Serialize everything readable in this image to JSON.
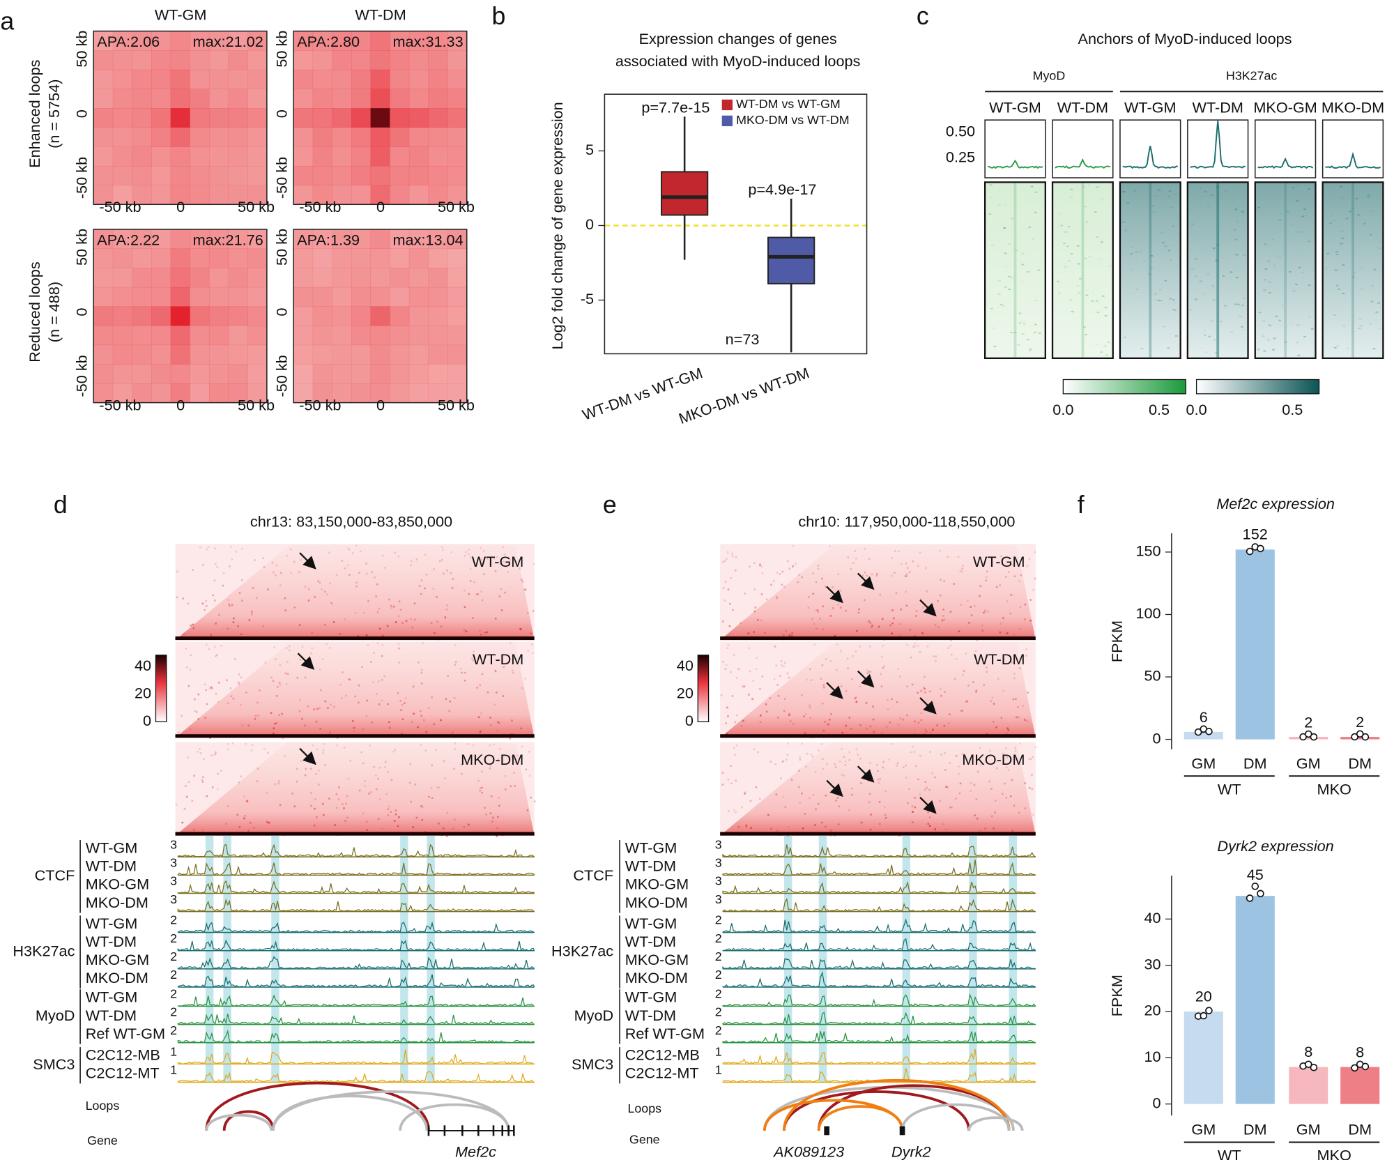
{
  "panel_labels": [
    "a",
    "b",
    "c",
    "d",
    "e",
    "f"
  ],
  "apa": {
    "columns": [
      "WT-GM",
      "WT-DM"
    ],
    "rows": [
      {
        "label": "Enhanced loops",
        "n": "(n = 5754)"
      },
      {
        "label": "Reduced loops",
        "n": "(n = 488)"
      }
    ],
    "stats": [
      [
        "APA:2.06",
        "max:21.02"
      ],
      [
        "APA:2.80",
        "max:31.33"
      ],
      [
        "APA:2.22",
        "max:21.76"
      ],
      [
        "APA:1.39",
        "max:13.04"
      ]
    ],
    "x_ticks": [
      "-50 kb",
      "0",
      "50 kb"
    ],
    "y_ticks": [
      "50 kb",
      "0",
      "-50 kb"
    ]
  },
  "anchors": {
    "title": "Anchors of MyoD-induced loops",
    "groups": [
      {
        "name": "MyoD",
        "columns": [
          "WT-GM",
          "WT-DM"
        ]
      },
      {
        "name": "H3K27ac",
        "columns": [
          "WT-GM",
          "WT-DM",
          "MKO-GM",
          "MKO-DM"
        ]
      }
    ],
    "profile_ticks": [
      "0.50",
      "0.25"
    ],
    "colorbars": [
      [
        "0.0",
        "0.5"
      ],
      [
        "0.0",
        "0.5"
      ]
    ]
  },
  "loci": [
    {
      "title": "chr13: 83,150,000-83,850,000",
      "maps": [
        "WT-GM",
        "WT-DM",
        "MKO-DM"
      ],
      "colorbar": [
        "40",
        "20",
        "0"
      ],
      "tracks": [
        {
          "name": "CTCF",
          "scale": "3",
          "color": "#7b7020",
          "samples": [
            "WT-GM",
            "WT-DM",
            "MKO-GM",
            "MKO-DM"
          ]
        },
        {
          "name": "H3K27ac",
          "scale": "2",
          "color": "#1b6f70",
          "samples": [
            "WT-GM",
            "WT-DM",
            "MKO-GM",
            "MKO-DM"
          ]
        },
        {
          "name": "MyoD",
          "scale": "2",
          "color": "#2a9440",
          "samples": [
            "WT-GM",
            "WT-DM",
            "Ref WT-GM"
          ]
        },
        {
          "name": "SMC3",
          "scale": "1",
          "color": "#e0aa1c",
          "samples": [
            "C2C12-MB",
            "C2C12-MT"
          ]
        }
      ],
      "loops": "Loops",
      "gene": "Gene",
      "genes": [
        {
          "name": "Mef2c",
          "color": "#d7191c"
        }
      ]
    },
    {
      "title": "chr10: 117,950,000-118,550,000",
      "maps": [
        "WT-GM",
        "WT-DM",
        "MKO-DM"
      ],
      "colorbar": [
        "40",
        "20",
        "0"
      ],
      "tracks": [
        {
          "name": "CTCF",
          "scale": "3",
          "color": "#7b7020",
          "samples": [
            "WT-GM",
            "WT-DM",
            "MKO-GM",
            "MKO-DM"
          ]
        },
        {
          "name": "H3K27ac",
          "scale": "2",
          "color": "#1b6f70",
          "samples": [
            "WT-GM",
            "WT-DM",
            "MKO-GM",
            "MKO-DM"
          ]
        },
        {
          "name": "MyoD",
          "scale": "2",
          "color": "#2a9440",
          "samples": [
            "WT-GM",
            "WT-DM",
            "Ref WT-GM"
          ]
        },
        {
          "name": "SMC3",
          "scale": "1",
          "color": "#e0aa1c",
          "samples": [
            "C2C12-MB",
            "C2C12-MT"
          ]
        }
      ],
      "loops": "Loops",
      "gene": "Gene",
      "genes": [
        {
          "name": "AK089123",
          "color": "#111111"
        },
        {
          "name": "Dyrk2",
          "color": "#d7191c"
        }
      ]
    }
  ],
  "chart_data": [
    {
      "type": "box",
      "title": [
        "Expression changes of genes",
        "associated with MyoD-induced loops"
      ],
      "ylabel": "Log2 fold change of gene expression",
      "categories": [
        "WT-DM vs WT-GM",
        "MKO-DM vs WT-DM"
      ],
      "series": [
        {
          "name": "WT-DM vs WT-GM",
          "color": "#c1272d",
          "min": -2.3,
          "q1": 0.7,
          "median": 1.9,
          "q3": 3.6,
          "max": 7.3
        },
        {
          "name": "MKO-DM vs WT-DM",
          "color": "#4f5ba6",
          "min": -8.5,
          "q1": -3.9,
          "median": -2.1,
          "q3": -0.8,
          "max": 1.8
        }
      ],
      "annotations": [
        "p=7.7e-15",
        "p=4.9e-17",
        "n=73"
      ],
      "reference_line": {
        "value": 0,
        "color": "#f2e12e"
      },
      "ylim": [
        -8.6,
        8.8
      ],
      "yticks": [
        -5,
        0,
        5
      ]
    },
    {
      "type": "bar",
      "title": "Mef2c expression",
      "ylabel": "FPKM",
      "groups": [
        {
          "name": "WT",
          "categories": [
            "GM",
            "DM"
          ],
          "values": [
            6,
            152
          ],
          "colors": [
            "#c6dbef",
            "#9dc3e2"
          ],
          "points": [
            [
              5.8,
              6.1,
              6.3
            ],
            [
              150.5,
              152,
              152.8
            ]
          ]
        },
        {
          "name": "MKO",
          "categories": [
            "GM",
            "DM"
          ],
          "values": [
            2,
            2
          ],
          "colors": [
            "#f6b8be",
            "#ef7f87"
          ],
          "points": [
            [
              2,
              2.1,
              1.9
            ],
            [
              2,
              2.2,
              1.9
            ]
          ]
        }
      ],
      "ylim": [
        -8,
        165
      ],
      "yticks": [
        0,
        50,
        100,
        150
      ]
    },
    {
      "type": "bar",
      "title": "Dyrk2 expression",
      "ylabel": "FPKM",
      "groups": [
        {
          "name": "WT",
          "categories": [
            "GM",
            "DM"
          ],
          "values": [
            20,
            45
          ],
          "colors": [
            "#c6dbef",
            "#9dc3e2"
          ],
          "points": [
            [
              19,
              18.5,
              20.2
            ],
            [
              44.5,
              46.5,
              45.5
            ]
          ]
        },
        {
          "name": "MKO",
          "categories": [
            "GM",
            "DM"
          ],
          "values": [
            8,
            8
          ],
          "colors": [
            "#f6b8be",
            "#ef7f87"
          ],
          "points": [
            [
              8.2,
              8,
              7.9
            ],
            [
              7.8,
              8,
              8.1
            ]
          ]
        }
      ],
      "ylim": [
        -2.5,
        49.4
      ],
      "yticks": [
        0,
        10,
        20,
        30,
        40
      ]
    }
  ]
}
